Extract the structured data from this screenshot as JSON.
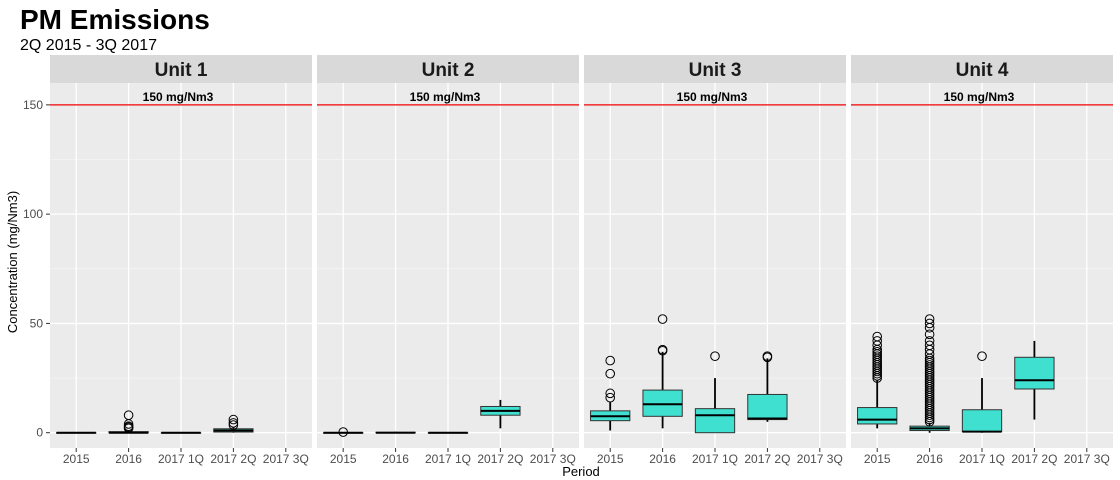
{
  "chart_data": {
    "type": "box",
    "title": "PM Emissions",
    "subtitle": "2Q 2015 - 3Q 2017",
    "xlabel": "Period",
    "ylabel": "Concentration (mg/Nm3)",
    "ylim": [
      -7,
      160
    ],
    "yticks": [
      0,
      50,
      100,
      150
    ],
    "categories": [
      "2015",
      "2016",
      "2017 1Q",
      "2017 2Q",
      "2017 3Q"
    ],
    "reference_line": {
      "value": 150,
      "label": "150 mg/Nm3",
      "color": "#ee0000"
    },
    "box_fill": "#40e0d0",
    "panels": [
      {
        "name": "Unit 1",
        "boxes": [
          {
            "category": "2015",
            "min": 0,
            "q1": 0,
            "median": 0,
            "q3": 0,
            "max": 0,
            "outliers": []
          },
          {
            "category": "2016",
            "min": 0,
            "q1": 0,
            "median": 0,
            "q3": 0.5,
            "max": 1,
            "outliers": [
              2,
              2.5,
              3,
              4,
              8
            ]
          },
          {
            "category": "2017 1Q",
            "min": 0,
            "q1": 0,
            "median": 0,
            "q3": 0,
            "max": 0,
            "outliers": []
          },
          {
            "category": "2017 2Q",
            "min": 0,
            "q1": 0.3,
            "median": 1,
            "q3": 1.8,
            "max": 2.5,
            "outliers": [
              3.5,
              4.5,
              6
            ]
          }
        ]
      },
      {
        "name": "Unit 2",
        "boxes": [
          {
            "category": "2015",
            "min": 0,
            "q1": 0,
            "median": 0,
            "q3": 0,
            "max": 0,
            "outliers": [
              0.3
            ]
          },
          {
            "category": "2016",
            "min": 0,
            "q1": 0,
            "median": 0,
            "q3": 0.2,
            "max": 0.5,
            "outliers": []
          },
          {
            "category": "2017 1Q",
            "min": 0,
            "q1": 0,
            "median": 0,
            "q3": 0,
            "max": 0,
            "outliers": []
          },
          {
            "category": "2017 2Q",
            "min": 2,
            "q1": 8,
            "median": 10,
            "q3": 12,
            "max": 15,
            "outliers": []
          }
        ]
      },
      {
        "name": "Unit 3",
        "boxes": [
          {
            "category": "2015",
            "min": 1,
            "q1": 5.5,
            "median": 7.5,
            "q3": 10,
            "max": 14,
            "outliers": [
              16,
              18,
              27,
              33
            ]
          },
          {
            "category": "2016",
            "min": 2,
            "q1": 7.5,
            "median": 13,
            "q3": 19.5,
            "max": 37,
            "outliers": [
              37.5,
              38,
              52
            ]
          },
          {
            "category": "2017 1Q",
            "min": 0,
            "q1": 0,
            "median": 8,
            "q3": 11,
            "max": 25,
            "outliers": [
              35
            ]
          },
          {
            "category": "2017 2Q",
            "min": 5,
            "q1": 6,
            "median": 6.5,
            "q3": 17.5,
            "max": 34,
            "outliers": [
              34.5,
              35
            ]
          }
        ]
      },
      {
        "name": "Unit 4",
        "boxes": [
          {
            "category": "2015",
            "min": 2,
            "q1": 4,
            "median": 6,
            "q3": 11.5,
            "max": 24,
            "outliers": [
              25,
              26,
              27,
              28,
              29,
              30,
              31,
              32,
              33,
              34,
              35,
              36,
              37,
              38,
              40,
              42,
              44
            ]
          },
          {
            "category": "2016",
            "min": 0,
            "q1": 1,
            "median": 2,
            "q3": 3,
            "max": 4.5,
            "outliers": [
              5,
              6,
              7,
              8,
              9,
              10,
              11,
              12,
              13,
              14,
              15,
              16,
              17,
              18,
              19,
              20,
              21,
              22,
              23,
              24,
              25,
              26,
              27,
              28,
              29,
              30,
              31,
              32,
              33,
              34,
              36,
              38,
              40,
              42,
              45,
              48,
              50,
              52
            ]
          },
          {
            "category": "2017 1Q",
            "min": 0,
            "q1": 0.5,
            "median": 0.5,
            "q3": 10.5,
            "max": 25,
            "outliers": [
              35
            ]
          },
          {
            "category": "2017 2Q",
            "min": 6,
            "q1": 20,
            "median": 24,
            "q3": 34.5,
            "max": 42,
            "outliers": []
          }
        ]
      }
    ]
  }
}
